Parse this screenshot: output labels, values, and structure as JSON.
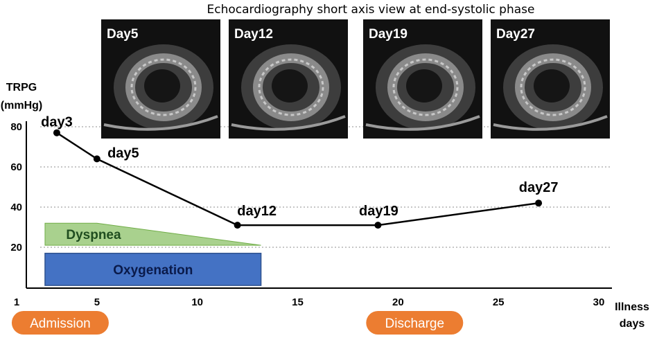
{
  "title": "Echocardiography short axis view at end-systolic phase",
  "panels": [
    {
      "label": "Day5"
    },
    {
      "label": "Day12"
    },
    {
      "label": "Day19"
    },
    {
      "label": "Day27"
    }
  ],
  "markers": [
    {
      "label": "Admission",
      "x": 3,
      "color": "#ec7d31"
    },
    {
      "label": "Discharge",
      "x": 21,
      "color": "#ec7d31"
    }
  ],
  "chart_data": {
    "type": "line",
    "ylabel_lines": [
      "TRPG",
      "(mmHg)"
    ],
    "xlabel_lines": [
      "Illness",
      "days"
    ],
    "xlim": [
      1,
      30
    ],
    "ylim": [
      0,
      80
    ],
    "xticks": [
      1,
      5,
      10,
      15,
      20,
      25,
      30
    ],
    "yticks": [
      20,
      40,
      60,
      80
    ],
    "grid": "horizontal-dotted",
    "line_color": "#000000",
    "series": [
      {
        "points": [
          {
            "x": 3,
            "y": 77,
            "label": "day3"
          },
          {
            "x": 5,
            "y": 64,
            "label": "day5"
          },
          {
            "x": 12,
            "y": 31,
            "label": "day12"
          },
          {
            "x": 19,
            "y": 31,
            "label": "day19"
          },
          {
            "x": 27,
            "y": 42,
            "label": "day27"
          }
        ]
      }
    ],
    "bands": [
      {
        "label": "Dyspnea",
        "shape": "tapering",
        "x": [
          2,
          13
        ],
        "y": [
          21,
          32
        ],
        "fill": "#a9d18e",
        "stroke": "#70ad47",
        "text_color": "#1f4d1f"
      },
      {
        "label": "Oxygenation",
        "shape": "rect",
        "x": [
          2,
          13
        ],
        "y": [
          1,
          17
        ],
        "fill": "#4472c4",
        "stroke": "#2f528f",
        "text_color": "#0a1a4a"
      }
    ]
  }
}
